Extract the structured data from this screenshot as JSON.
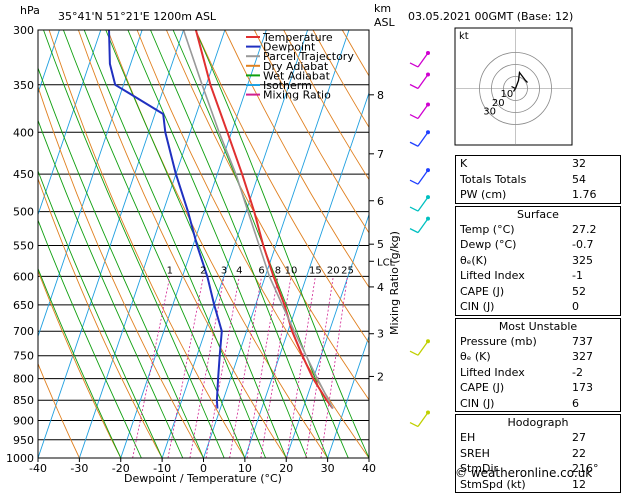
{
  "header": {
    "hpa_label": "hPa",
    "location": "35°41'N  51°21'E  1200m  ASL",
    "km_label": "km",
    "asl_label": "ASL",
    "datetime": "03.05.2021  00GMT  (Base: 12)"
  },
  "colors": {
    "temperature": "#e03030",
    "dewpoint": "#2030c0",
    "parcel": "#999999",
    "dry_adiabat": "#e08020",
    "wet_adiabat": "#10a010",
    "isotherm": "#20a0e0",
    "mixing_ratio": "#d02090"
  },
  "chart_data": {
    "type": "line",
    "title": "Skew-T log-P diagram",
    "xlabel": "Dewpoint / Temperature (°C)",
    "ylabel": "hPa",
    "y2label": "Mixing Ratio (g/kg)",
    "xlim": [
      -40,
      40
    ],
    "ylim": [
      1000,
      300
    ],
    "pressure_ticks": [
      "300",
      "350",
      "400",
      "450",
      "500",
      "550",
      "600",
      "650",
      "700",
      "750",
      "800",
      "850",
      "900",
      "950",
      "1000"
    ],
    "temp_ticks": [
      "-40",
      "-30",
      "-20",
      "-10",
      "0",
      "10",
      "20",
      "30",
      "40"
    ],
    "km_ticks": [
      {
        "km": "8",
        "p": 360
      },
      {
        "km": "7",
        "p": 425
      },
      {
        "km": "6",
        "p": 485
      },
      {
        "km": "5",
        "p": 548
      },
      {
        "km": "4",
        "p": 618
      },
      {
        "km": "3",
        "p": 705
      },
      {
        "km": "2",
        "p": 795
      },
      {
        "km": "LCL",
        "p": 575
      }
    ],
    "mixing_ratio_labels": [
      "1",
      "2",
      "3",
      "4",
      "6",
      "8",
      "10",
      "15",
      "20",
      "25"
    ],
    "legend": [
      {
        "name": "Temperature",
        "color": "#e03030"
      },
      {
        "name": "Dewpoint",
        "color": "#2030c0"
      },
      {
        "name": "Parcel Trajectory",
        "color": "#999999"
      },
      {
        "name": "Dry Adiabat",
        "color": "#e08020"
      },
      {
        "name": "Wet Adiabat",
        "color": "#10a010"
      },
      {
        "name": "Isotherm",
        "color": "#20a0e0"
      },
      {
        "name": "Mixing Ratio",
        "color": "#d02090"
      }
    ],
    "series": [
      {
        "name": "Temperature",
        "points": [
          [
            870,
            27.2
          ],
          [
            850,
            25
          ],
          [
            800,
            20
          ],
          [
            750,
            15.5
          ],
          [
            700,
            11
          ],
          [
            650,
            7
          ],
          [
            600,
            2
          ],
          [
            550,
            -3
          ],
          [
            500,
            -8
          ],
          [
            450,
            -14
          ],
          [
            400,
            -21
          ],
          [
            350,
            -29
          ],
          [
            300,
            -37
          ]
        ]
      },
      {
        "name": "Dewpoint",
        "points": [
          [
            870,
            -0.7
          ],
          [
            850,
            -1.5
          ],
          [
            800,
            -3
          ],
          [
            750,
            -4.5
          ],
          [
            700,
            -6
          ],
          [
            650,
            -10
          ],
          [
            600,
            -14
          ],
          [
            550,
            -19
          ],
          [
            500,
            -24
          ],
          [
            450,
            -30
          ],
          [
            400,
            -36
          ],
          [
            380,
            -38
          ],
          [
            350,
            -52
          ],
          [
            330,
            -55
          ],
          [
            300,
            -58
          ]
        ]
      },
      {
        "name": "Parcel Trajectory",
        "points": [
          [
            870,
            27.2
          ],
          [
            800,
            21
          ],
          [
            700,
            11.5
          ],
          [
            600,
            1
          ],
          [
            550,
            -4
          ],
          [
            500,
            -9.5
          ],
          [
            450,
            -15.5
          ],
          [
            400,
            -23
          ],
          [
            350,
            -31
          ],
          [
            300,
            -40
          ]
        ]
      }
    ]
  },
  "hodograph": {
    "unit_label": "kt",
    "ring_labels": [
      "10",
      "20",
      "30"
    ]
  },
  "indices": {
    "top": [
      {
        "label": "K",
        "value": "32"
      },
      {
        "label": "Totals Totals",
        "value": "54"
      },
      {
        "label": "PW (cm)",
        "value": "1.76"
      }
    ],
    "surface": {
      "title": "Surface",
      "rows": [
        {
          "label": "Temp (°C)",
          "value": "27.2"
        },
        {
          "label": "Dewp (°C)",
          "value": "-0.7"
        },
        {
          "label": "θₑ(K)",
          "value": "325"
        },
        {
          "label": "Lifted Index",
          "value": "-1"
        },
        {
          "label": "CAPE (J)",
          "value": "52"
        },
        {
          "label": "CIN (J)",
          "value": "0"
        }
      ]
    },
    "most_unstable": {
      "title": "Most Unstable",
      "rows": [
        {
          "label": "Pressure (mb)",
          "value": "737"
        },
        {
          "label": "θₑ (K)",
          "value": "327"
        },
        {
          "label": "Lifted Index",
          "value": "-2"
        },
        {
          "label": "CAPE (J)",
          "value": "173"
        },
        {
          "label": "CIN (J)",
          "value": "6"
        }
      ]
    },
    "hodograph_box": {
      "title": "Hodograph",
      "rows": [
        {
          "label": "EH",
          "value": "27"
        },
        {
          "label": "SREH",
          "value": "22"
        },
        {
          "label": "StmDir",
          "value": "216°"
        },
        {
          "label": "StmSpd (kt)",
          "value": "12"
        }
      ]
    }
  },
  "footer": "© weatheronline.co.uk"
}
